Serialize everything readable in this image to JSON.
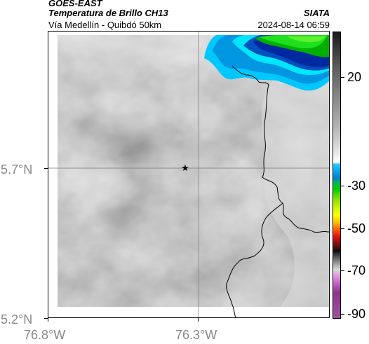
{
  "header": {
    "satellite": "GOES-EAST",
    "product": "Temperatura de Brillo CH13",
    "route": "Vía Medellín - Quibdó 50km",
    "agency": "SIATA",
    "datetime": "2024-08-14 06:59"
  },
  "map": {
    "gridlines": true,
    "lat_labels": [
      "5.7°N",
      "5.2°N"
    ],
    "lon_labels": [
      "76.8°W",
      "76.3°W"
    ],
    "marker": {
      "symbol": "★",
      "name": "star-marker"
    }
  },
  "colorbar": {
    "ticks": [
      "20",
      "-30",
      "-50",
      "-70",
      "-90"
    ],
    "colors": {
      "cold_cloud_cyan": "#00c8ff",
      "cold_cloud_blue": "#0032a0",
      "cold_cloud_green": "#00e000",
      "warm_gray": "#a0a0a0"
    }
  }
}
